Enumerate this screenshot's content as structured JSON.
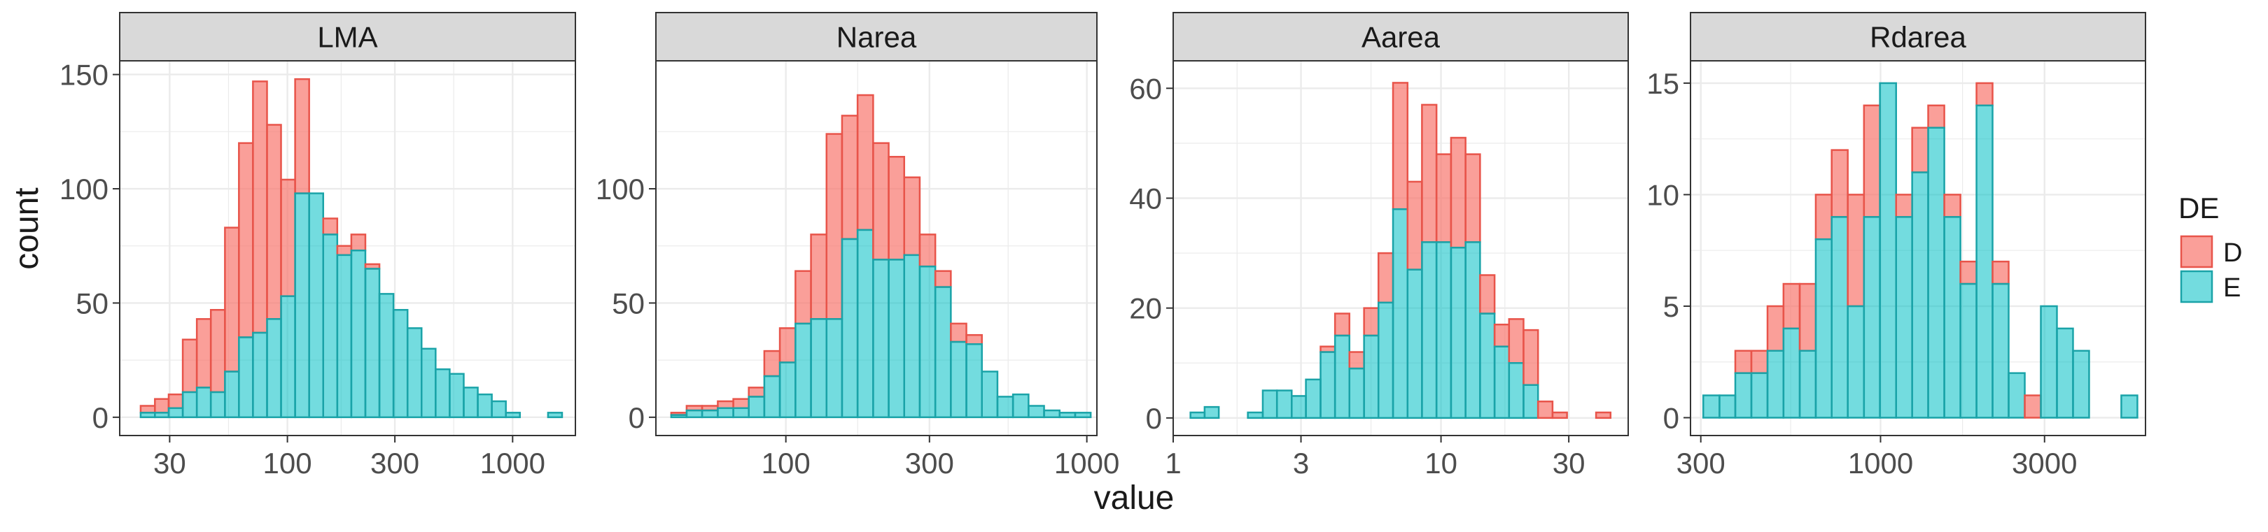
{
  "colors": {
    "D_fill": "#F8766D",
    "D_stroke": "#E8544A",
    "E_fill": "#00BFC4",
    "E_stroke": "#1AA3A8",
    "strip_bg": "#D9D9D9",
    "grid": "#EBEBEB",
    "text": "#1a1a1a",
    "tick_text": "#4D4D4D"
  },
  "chart_data": {
    "type": "bar",
    "subtype": "stacked-histogram-facets",
    "xlabel": "value",
    "ylabel": "count",
    "x_scale": "log10",
    "legend": {
      "title": "DE",
      "position": "right",
      "entries": [
        "D",
        "E"
      ]
    },
    "panels": [
      {
        "strip": "LMA",
        "xlim": [
          18,
          1900
        ],
        "ylim": [
          -8,
          156
        ],
        "x_ticks": [
          30,
          100,
          300,
          1000
        ],
        "x_tick_labels": [
          "30",
          "100",
          "300",
          "1000"
        ],
        "y_ticks": [
          0,
          50,
          100,
          150
        ],
        "y_tick_labels": [
          "0",
          "50",
          "100",
          "150"
        ],
        "bins": [
          {
            "x0": 22.3,
            "x1": 25.8,
            "E": 2,
            "total": 5
          },
          {
            "x0": 25.8,
            "x1": 29.7,
            "E": 2,
            "total": 8
          },
          {
            "x0": 29.7,
            "x1": 34.3,
            "E": 4,
            "total": 10
          },
          {
            "x0": 34.3,
            "x1": 39.6,
            "E": 11,
            "total": 34
          },
          {
            "x0": 39.6,
            "x1": 45.7,
            "E": 13,
            "total": 43
          },
          {
            "x0": 45.7,
            "x1": 52.8,
            "E": 11,
            "total": 47
          },
          {
            "x0": 52.8,
            "x1": 60.9,
            "E": 20,
            "total": 83
          },
          {
            "x0": 60.9,
            "x1": 70.3,
            "E": 35,
            "total": 120
          },
          {
            "x0": 70.3,
            "x1": 81.2,
            "E": 37,
            "total": 147
          },
          {
            "x0": 81.2,
            "x1": 93.7,
            "E": 43,
            "total": 128
          },
          {
            "x0": 93.7,
            "x1": 108.2,
            "E": 53,
            "total": 104
          },
          {
            "x0": 108.2,
            "x1": 124.9,
            "E": 98,
            "total": 148
          },
          {
            "x0": 124.9,
            "x1": 144.2,
            "E": 98,
            "total": 98
          },
          {
            "x0": 144.2,
            "x1": 166.5,
            "E": 80,
            "total": 87
          },
          {
            "x0": 166.5,
            "x1": 192.2,
            "E": 71,
            "total": 75
          },
          {
            "x0": 192.2,
            "x1": 221.9,
            "E": 73,
            "total": 80
          },
          {
            "x0": 221.9,
            "x1": 256.2,
            "E": 65,
            "total": 67
          },
          {
            "x0": 256.2,
            "x1": 295.8,
            "E": 54,
            "total": 54
          },
          {
            "x0": 295.8,
            "x1": 341.5,
            "E": 47,
            "total": 47
          },
          {
            "x0": 341.5,
            "x1": 394.2,
            "E": 39,
            "total": 39
          },
          {
            "x0": 394.2,
            "x1": 455.1,
            "E": 30,
            "total": 30
          },
          {
            "x0": 455.1,
            "x1": 525.4,
            "E": 21,
            "total": 21
          },
          {
            "x0": 525.4,
            "x1": 606.6,
            "E": 19,
            "total": 19
          },
          {
            "x0": 606.6,
            "x1": 700.3,
            "E": 13,
            "total": 13
          },
          {
            "x0": 700.3,
            "x1": 808.5,
            "E": 10,
            "total": 10
          },
          {
            "x0": 808.5,
            "x1": 933.4,
            "E": 7,
            "total": 7
          },
          {
            "x0": 933.4,
            "x1": 1077.6,
            "E": 2,
            "total": 2
          },
          {
            "x0": 1077.6,
            "x1": 1244.1,
            "E": 0,
            "total": 0
          },
          {
            "x0": 1244.1,
            "x1": 1436.3,
            "E": 0,
            "total": 0
          },
          {
            "x0": 1436.3,
            "x1": 1658.1,
            "E": 2,
            "total": 2
          }
        ]
      },
      {
        "strip": "Narea",
        "xlim": [
          37,
          1080
        ],
        "ylim": [
          -8,
          156
        ],
        "x_ticks": [
          100,
          300,
          1000
        ],
        "x_tick_labels": [
          "100",
          "300",
          "1000"
        ],
        "y_ticks": [
          0,
          50,
          100
        ],
        "y_tick_labels": [
          "0",
          "50",
          "100"
        ],
        "bins": [
          {
            "x0": 41.6,
            "x1": 46.8,
            "E": 1,
            "total": 2
          },
          {
            "x0": 46.8,
            "x1": 52.7,
            "E": 3,
            "total": 5
          },
          {
            "x0": 52.7,
            "x1": 59.4,
            "E": 3,
            "total": 5
          },
          {
            "x0": 59.4,
            "x1": 66.9,
            "E": 4,
            "total": 7
          },
          {
            "x0": 66.9,
            "x1": 75.3,
            "E": 4,
            "total": 8
          },
          {
            "x0": 75.3,
            "x1": 84.8,
            "E": 9,
            "total": 13
          },
          {
            "x0": 84.8,
            "x1": 95.5,
            "E": 18,
            "total": 29
          },
          {
            "x0": 95.5,
            "x1": 107.6,
            "E": 24,
            "total": 39
          },
          {
            "x0": 107.6,
            "x1": 121.2,
            "E": 41,
            "total": 64
          },
          {
            "x0": 121.2,
            "x1": 136.5,
            "E": 43,
            "total": 80
          },
          {
            "x0": 136.5,
            "x1": 153.7,
            "E": 43,
            "total": 124
          },
          {
            "x0": 153.7,
            "x1": 173.1,
            "E": 78,
            "total": 132
          },
          {
            "x0": 173.1,
            "x1": 195.0,
            "E": 82,
            "total": 141
          },
          {
            "x0": 195.0,
            "x1": 219.6,
            "E": 69,
            "total": 120
          },
          {
            "x0": 219.6,
            "x1": 247.3,
            "E": 69,
            "total": 114
          },
          {
            "x0": 247.3,
            "x1": 278.5,
            "E": 71,
            "total": 105
          },
          {
            "x0": 278.5,
            "x1": 313.7,
            "E": 66,
            "total": 80
          },
          {
            "x0": 313.7,
            "x1": 353.3,
            "E": 57,
            "total": 64
          },
          {
            "x0": 353.3,
            "x1": 397.9,
            "E": 33,
            "total": 41
          },
          {
            "x0": 397.9,
            "x1": 448.1,
            "E": 32,
            "total": 36
          },
          {
            "x0": 448.1,
            "x1": 504.7,
            "E": 20,
            "total": 20
          },
          {
            "x0": 504.7,
            "x1": 568.4,
            "E": 9,
            "total": 9
          },
          {
            "x0": 568.4,
            "x1": 640.2,
            "E": 10,
            "total": 10
          },
          {
            "x0": 640.2,
            "x1": 721.0,
            "E": 5,
            "total": 5
          },
          {
            "x0": 721.0,
            "x1": 812.0,
            "E": 3,
            "total": 3
          },
          {
            "x0": 812.0,
            "x1": 914.5,
            "E": 2,
            "total": 2
          },
          {
            "x0": 914.5,
            "x1": 1030.0,
            "E": 2,
            "total": 2
          }
        ]
      },
      {
        "strip": "Aarea",
        "xlim": [
          1,
          50
        ],
        "ylim": [
          -3.2,
          65
        ],
        "x_ticks": [
          1,
          3,
          10,
          30
        ],
        "x_tick_labels": [
          "1",
          "3",
          "10",
          "30"
        ],
        "y_ticks": [
          0,
          20,
          40,
          60
        ],
        "y_tick_labels": [
          "0",
          "20",
          "40",
          "60"
        ],
        "bins": [
          {
            "x0": 1.16,
            "x1": 1.31,
            "E": 1,
            "total": 1
          },
          {
            "x0": 1.31,
            "x1": 1.48,
            "E": 2,
            "total": 2
          },
          {
            "x0": 1.48,
            "x1": 1.68,
            "E": 0,
            "total": 0
          },
          {
            "x0": 1.68,
            "x1": 1.9,
            "E": 0,
            "total": 0
          },
          {
            "x0": 1.9,
            "x1": 2.16,
            "E": 1,
            "total": 1
          },
          {
            "x0": 2.16,
            "x1": 2.44,
            "E": 5,
            "total": 5
          },
          {
            "x0": 2.44,
            "x1": 2.77,
            "E": 5,
            "total": 5
          },
          {
            "x0": 2.77,
            "x1": 3.13,
            "E": 4,
            "total": 4
          },
          {
            "x0": 3.13,
            "x1": 3.55,
            "E": 7,
            "total": 7
          },
          {
            "x0": 3.55,
            "x1": 4.02,
            "E": 12,
            "total": 13
          },
          {
            "x0": 4.02,
            "x1": 4.55,
            "E": 15,
            "total": 19
          },
          {
            "x0": 4.55,
            "x1": 5.16,
            "E": 9,
            "total": 12
          },
          {
            "x0": 5.16,
            "x1": 5.84,
            "E": 15,
            "total": 20
          },
          {
            "x0": 5.84,
            "x1": 6.62,
            "E": 21,
            "total": 30
          },
          {
            "x0": 6.62,
            "x1": 7.5,
            "E": 38,
            "total": 61
          },
          {
            "x0": 7.5,
            "x1": 8.49,
            "E": 27,
            "total": 43
          },
          {
            "x0": 8.49,
            "x1": 9.62,
            "E": 32,
            "total": 57
          },
          {
            "x0": 9.62,
            "x1": 10.9,
            "E": 32,
            "total": 48
          },
          {
            "x0": 10.9,
            "x1": 12.35,
            "E": 31,
            "total": 51
          },
          {
            "x0": 12.35,
            "x1": 13.99,
            "E": 32,
            "total": 48
          },
          {
            "x0": 13.99,
            "x1": 15.85,
            "E": 19,
            "total": 26
          },
          {
            "x0": 15.85,
            "x1": 17.95,
            "E": 13,
            "total": 17
          },
          {
            "x0": 17.95,
            "x1": 20.33,
            "E": 10,
            "total": 18
          },
          {
            "x0": 20.33,
            "x1": 23.03,
            "E": 6,
            "total": 16
          },
          {
            "x0": 23.03,
            "x1": 26.09,
            "E": 0,
            "total": 3
          },
          {
            "x0": 26.09,
            "x1": 29.55,
            "E": 0,
            "total": 1
          },
          {
            "x0": 29.55,
            "x1": 33.48,
            "E": 0,
            "total": 0
          },
          {
            "x0": 33.48,
            "x1": 37.93,
            "E": 0,
            "total": 0
          },
          {
            "x0": 37.93,
            "x1": 42.96,
            "E": 0,
            "total": 1
          }
        ]
      },
      {
        "strip": "Rdarea",
        "xlim": [
          280,
          5900
        ],
        "ylim": [
          -0.8,
          16
        ],
        "x_ticks": [
          300,
          1000,
          3000
        ],
        "x_tick_labels": [
          "300",
          "1000",
          "3000"
        ],
        "y_ticks": [
          0,
          5,
          10,
          15
        ],
        "y_tick_labels": [
          "0",
          "5",
          "10",
          "15"
        ],
        "bins": [
          {
            "x0": 305,
            "x1": 340,
            "E": 1,
            "total": 1
          },
          {
            "x0": 340,
            "x1": 378,
            "E": 1,
            "total": 1
          },
          {
            "x0": 378,
            "x1": 421,
            "E": 2,
            "total": 3
          },
          {
            "x0": 421,
            "x1": 469,
            "E": 2,
            "total": 3
          },
          {
            "x0": 469,
            "x1": 522,
            "E": 3,
            "total": 5
          },
          {
            "x0": 522,
            "x1": 582,
            "E": 4,
            "total": 6
          },
          {
            "x0": 582,
            "x1": 648,
            "E": 3,
            "total": 6
          },
          {
            "x0": 648,
            "x1": 721,
            "E": 8,
            "total": 10
          },
          {
            "x0": 721,
            "x1": 803,
            "E": 9,
            "total": 12
          },
          {
            "x0": 803,
            "x1": 895,
            "E": 5,
            "total": 10
          },
          {
            "x0": 895,
            "x1": 996,
            "E": 9,
            "total": 14
          },
          {
            "x0": 996,
            "x1": 1110,
            "E": 15,
            "total": 15
          },
          {
            "x0": 1110,
            "x1": 1236,
            "E": 9,
            "total": 10
          },
          {
            "x0": 1236,
            "x1": 1376,
            "E": 11,
            "total": 13
          },
          {
            "x0": 1376,
            "x1": 1533,
            "E": 13,
            "total": 14
          },
          {
            "x0": 1533,
            "x1": 1708,
            "E": 9,
            "total": 10
          },
          {
            "x0": 1708,
            "x1": 1902,
            "E": 6,
            "total": 7
          },
          {
            "x0": 1902,
            "x1": 2118,
            "E": 14,
            "total": 15
          },
          {
            "x0": 2118,
            "x1": 2359,
            "E": 6,
            "total": 7
          },
          {
            "x0": 2359,
            "x1": 2628,
            "E": 2,
            "total": 2
          },
          {
            "x0": 2628,
            "x1": 2927,
            "E": 0,
            "total": 1
          },
          {
            "x0": 2927,
            "x1": 3260,
            "E": 5,
            "total": 5
          },
          {
            "x0": 3260,
            "x1": 3631,
            "E": 4,
            "total": 4
          },
          {
            "x0": 3631,
            "x1": 4044,
            "E": 3,
            "total": 3
          },
          {
            "x0": 4044,
            "x1": 4504,
            "E": 0,
            "total": 0
          },
          {
            "x0": 4504,
            "x1": 5017,
            "E": 0,
            "total": 0
          },
          {
            "x0": 5017,
            "x1": 5588,
            "E": 1,
            "total": 1
          }
        ]
      }
    ]
  }
}
